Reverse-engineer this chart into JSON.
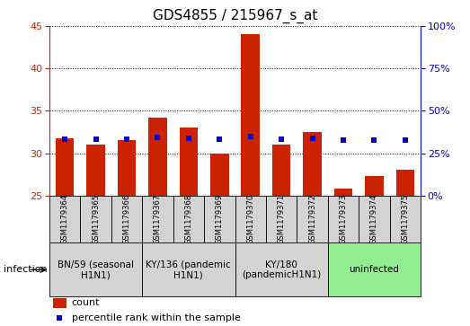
{
  "title": "GDS4855 / 215967_s_at",
  "samples": [
    "GSM1179364",
    "GSM1179365",
    "GSM1179366",
    "GSM1179367",
    "GSM1179368",
    "GSM1179369",
    "GSM1179370",
    "GSM1179371",
    "GSM1179372",
    "GSM1179373",
    "GSM1179374",
    "GSM1179375"
  ],
  "counts": [
    31.8,
    31.0,
    31.5,
    34.2,
    33.0,
    30.0,
    44.0,
    31.0,
    32.5,
    25.8,
    27.3,
    28.0
  ],
  "percentile_ranks": [
    33.5,
    33.5,
    33.5,
    34.5,
    34.0,
    33.5,
    35.0,
    33.5,
    34.0,
    32.5,
    33.0,
    33.0
  ],
  "ylim_left": [
    25,
    45
  ],
  "ylim_right": [
    0,
    100
  ],
  "yticks_left": [
    25,
    30,
    35,
    40,
    45
  ],
  "yticks_right": [
    0,
    25,
    50,
    75,
    100
  ],
  "bar_color": "#cc2200",
  "dot_color": "#0000cc",
  "groups": [
    {
      "label": "BN/59 (seasonal\nH1N1)",
      "start": 0,
      "end": 3,
      "color": "#d3d3d3"
    },
    {
      "label": "KY/136 (pandemic\nH1N1)",
      "start": 3,
      "end": 6,
      "color": "#d3d3d3"
    },
    {
      "label": "KY/180\n(pandemicH1N1)",
      "start": 6,
      "end": 9,
      "color": "#d3d3d3"
    },
    {
      "label": "uninfected",
      "start": 9,
      "end": 12,
      "color": "#90ee90"
    }
  ],
  "infection_label": "infection",
  "legend_count_label": "count",
  "legend_pct_label": "percentile rank within the sample",
  "title_fontsize": 11,
  "tick_fontsize": 8,
  "sample_fontsize": 6.0,
  "group_fontsize": 7.5,
  "legend_fontsize": 8
}
